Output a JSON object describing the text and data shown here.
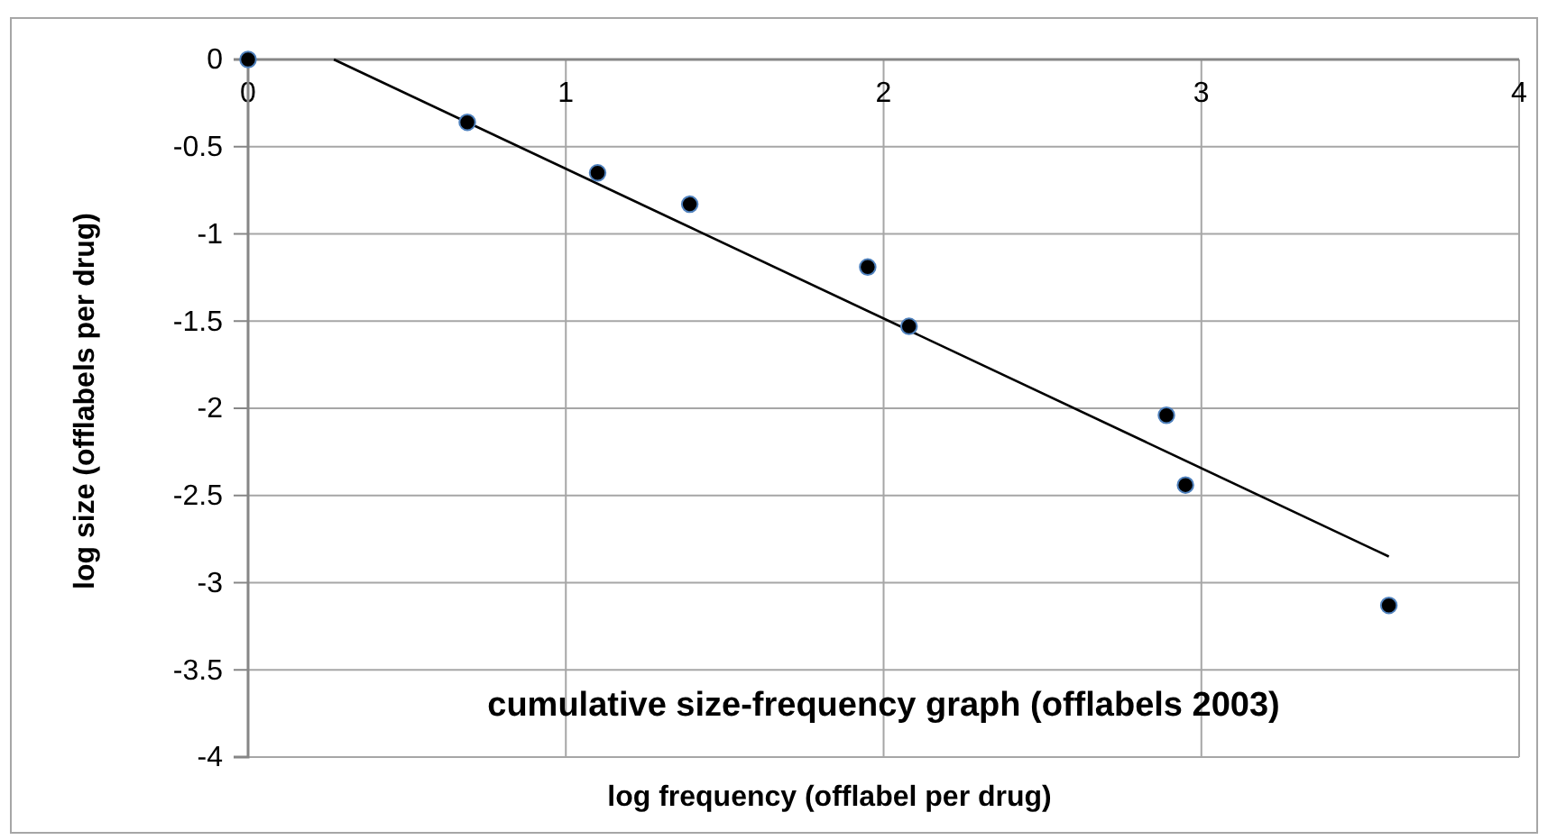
{
  "chart_data": {
    "type": "scatter",
    "title": "cumulative size-frequency graph (offlabels 2003)",
    "xlabel": "log frequency (offlabel per drug)",
    "ylabel": "log size (offlabels per drug)",
    "xlim": [
      0,
      4
    ],
    "xticks": [
      0,
      1,
      2,
      3,
      4
    ],
    "ylim": [
      -4,
      0
    ],
    "yticks": [
      0,
      -0.5,
      -1,
      -1.5,
      -2,
      -2.5,
      -3,
      -3.5,
      -4
    ],
    "grid": true,
    "marker": "circle",
    "series": [
      {
        "color": "#000000",
        "x": [
          0,
          0.69,
          1.1,
          1.39,
          1.95,
          2.08,
          2.89,
          2.95,
          3.59
        ],
        "values": [
          0,
          -0.36,
          -0.65,
          -0.83,
          -1.19,
          -1.53,
          -2.04,
          -2.44,
          -3.13
        ]
      },
      {
        "type": "line",
        "color": "#000000",
        "marker": "none",
        "x": [
          0.27,
          3.59
        ],
        "values": [
          0,
          -2.85
        ]
      }
    ]
  }
}
